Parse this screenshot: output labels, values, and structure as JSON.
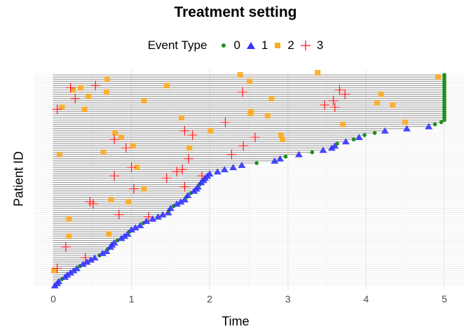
{
  "chart_data": {
    "type": "scatter",
    "title": "Treatment setting",
    "xlabel": "Time",
    "ylabel": "Patient ID",
    "xlim": [
      0,
      5
    ],
    "xticks": [
      "0",
      "1",
      "2",
      "3",
      "4",
      "5"
    ],
    "grid": true,
    "legend": {
      "title": "Event Type",
      "placement": "top",
      "entries": [
        {
          "label": "0",
          "shape": "circle",
          "color": "#1f8f1f"
        },
        {
          "label": "1",
          "shape": "triangle",
          "color": "#3333ff"
        },
        {
          "label": "2",
          "shape": "square",
          "color": "#fbab26"
        },
        {
          "label": "3",
          "shape": "plus",
          "color": "#ff1a1a"
        }
      ]
    },
    "segment_color": "#9a9a9a",
    "end_times": [
      0.02,
      0.05,
      0.07,
      0.11,
      0.15,
      0.18,
      0.22,
      0.26,
      0.3,
      0.34,
      0.38,
      0.43,
      0.48,
      0.53,
      0.59,
      0.63,
      0.68,
      0.7,
      0.73,
      0.75,
      0.78,
      0.82,
      0.87,
      0.91,
      0.95,
      0.97,
      1.0,
      1.05,
      1.11,
      1.15,
      1.19,
      1.27,
      1.34,
      1.4,
      1.47,
      1.48,
      1.5,
      1.54,
      1.58,
      1.63,
      1.68,
      1.7,
      1.72,
      1.76,
      1.8,
      1.83,
      1.85,
      1.87,
      1.89,
      1.92,
      1.94,
      1.97,
      2.0,
      2.1,
      2.19,
      2.3,
      2.41,
      2.6,
      2.83,
      2.9,
      2.97,
      3.14,
      3.31,
      3.45,
      3.56,
      3.6,
      3.63,
      3.74,
      3.84,
      3.91,
      3.98,
      4.11,
      4.24,
      4.52,
      4.8,
      4.88,
      4.96,
      5,
      5,
      5,
      5,
      5,
      5,
      5,
      5,
      5,
      5,
      5,
      5,
      5,
      5,
      5,
      5,
      5,
      5,
      5,
      5,
      5,
      5
    ],
    "censored_rows": [
      3,
      9,
      14,
      17,
      21,
      25,
      29,
      35,
      37,
      41,
      43,
      47,
      57,
      60,
      62,
      66,
      68,
      70,
      71,
      75,
      76,
      77,
      78,
      79,
      80,
      81,
      82,
      83,
      84,
      85,
      86,
      87,
      88,
      89,
      90,
      91,
      92,
      93,
      94,
      95,
      96,
      97,
      98,
      99
    ],
    "type2_events": [
      [
        0.69,
        96
      ],
      [
        2.39,
        98
      ],
      [
        2.51,
        95
      ],
      [
        4.92,
        97
      ],
      [
        3.38,
        99
      ],
      [
        0.35,
        92
      ],
      [
        0.25,
        91
      ],
      [
        0.68,
        90
      ],
      [
        1.45,
        93
      ],
      [
        0.45,
        88
      ],
      [
        1.16,
        86
      ],
      [
        2.79,
        87
      ],
      [
        4.19,
        89
      ],
      [
        4.14,
        85
      ],
      [
        4.34,
        84
      ],
      [
        0.11,
        83
      ],
      [
        0.4,
        82
      ],
      [
        2.53,
        81
      ],
      [
        2.52,
        80
      ],
      [
        2.74,
        79
      ],
      [
        1.64,
        78
      ],
      [
        3.7,
        75
      ],
      [
        4.5,
        76
      ],
      [
        0.79,
        71
      ],
      [
        2.01,
        72
      ],
      [
        0.87,
        69
      ],
      [
        2.91,
        70
      ],
      [
        2.93,
        68
      ],
      [
        1.02,
        65
      ],
      [
        1.74,
        64
      ],
      [
        0.64,
        62
      ],
      [
        0.08,
        61
      ],
      [
        1.07,
        55
      ],
      [
        1.16,
        45
      ],
      [
        0.74,
        40
      ],
      [
        0.96,
        39
      ],
      [
        0.2,
        31
      ],
      [
        0.2,
        23
      ],
      [
        0.71,
        24
      ],
      [
        0.01,
        7
      ]
    ],
    "type3_events": [
      [
        0.22,
        92
      ],
      [
        0.54,
        93
      ],
      [
        0.28,
        87
      ],
      [
        0.05,
        82
      ],
      [
        2.42,
        90
      ],
      [
        2.2,
        76
      ],
      [
        1.68,
        72
      ],
      [
        1.78,
        70
      ],
      [
        0.78,
        68
      ],
      [
        0.93,
        64
      ],
      [
        2.43,
        65
      ],
      [
        1.73,
        59
      ],
      [
        2.28,
        61
      ],
      [
        1.0,
        55
      ],
      [
        1.58,
        53
      ],
      [
        1.65,
        54
      ],
      [
        1.9,
        51
      ],
      [
        0.78,
        51
      ],
      [
        1.45,
        50
      ],
      [
        3.66,
        91
      ],
      [
        3.73,
        89
      ],
      [
        3.47,
        84
      ],
      [
        3.58,
        86
      ],
      [
        3.6,
        83
      ],
      [
        2.58,
        69
      ],
      [
        1.03,
        45
      ],
      [
        0.47,
        39
      ],
      [
        0.51,
        38
      ],
      [
        0.84,
        33
      ],
      [
        1.22,
        32
      ],
      [
        1.68,
        46
      ],
      [
        0.16,
        18
      ],
      [
        0.41,
        13
      ],
      [
        0.05,
        8
      ]
    ]
  }
}
